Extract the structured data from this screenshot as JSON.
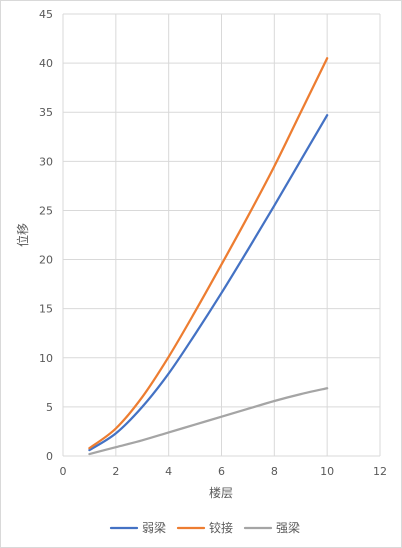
{
  "chart_data": {
    "type": "line",
    "title": "",
    "xlabel": "楼层",
    "ylabel": "位移",
    "xlim": [
      0,
      12
    ],
    "ylim": [
      0,
      45
    ],
    "xticks": [
      0,
      2,
      4,
      6,
      8,
      10,
      12
    ],
    "yticks": [
      0,
      5,
      10,
      15,
      20,
      25,
      30,
      35,
      40,
      45
    ],
    "xtick_labels": [
      "0",
      "2",
      "4",
      "6",
      "8",
      "10",
      "12"
    ],
    "ytick_labels": [
      "0",
      "5",
      "10",
      "15",
      "20",
      "25",
      "30",
      "35",
      "40",
      "45"
    ],
    "grid": "vertical and horizontal major gridlines",
    "legend_position": "bottom",
    "x": [
      1,
      2,
      3,
      4,
      5,
      6,
      7,
      8,
      9,
      10
    ],
    "series": [
      {
        "name": "弱梁",
        "color": "#4472C4",
        "values": [
          0.6,
          2.3,
          5.0,
          8.4,
          12.4,
          16.6,
          21.0,
          25.5,
          30.1,
          34.7
        ]
      },
      {
        "name": "铰接",
        "color": "#ED7D31",
        "values": [
          0.8,
          2.8,
          6.0,
          10.1,
          14.7,
          19.5,
          24.4,
          29.5,
          35.0,
          40.5
        ]
      },
      {
        "name": "强梁",
        "color": "#A5A5A5",
        "values": [
          0.2,
          0.9,
          1.6,
          2.4,
          3.2,
          4.0,
          4.8,
          5.6,
          6.3,
          6.9
        ]
      }
    ]
  }
}
